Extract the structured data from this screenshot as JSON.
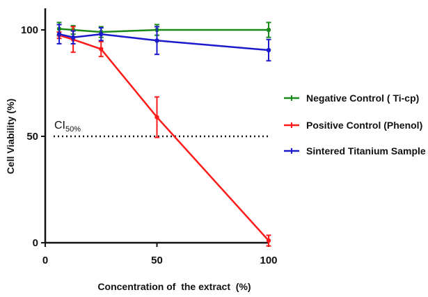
{
  "chart_data": {
    "type": "line",
    "xlabel": "Concentration of  the extract  (%)",
    "ylabel": "Cell Viability (%)",
    "xlim": [
      0,
      100
    ],
    "ylim": [
      0,
      100
    ],
    "x_ticks": [
      "0",
      "50",
      "100"
    ],
    "y_ticks": [
      "0",
      "50",
      "100"
    ],
    "grid": false,
    "legend_position": "right",
    "x": [
      6.25,
      12.5,
      25,
      50,
      100
    ],
    "series": [
      {
        "name": "Negative Control ( Ti-cp)",
        "color": "#1a8a1a",
        "values": [
          100.5,
          100,
          99,
          100,
          100
        ],
        "error": [
          3,
          2,
          2.5,
          2.5,
          3.5
        ]
      },
      {
        "name": "Positive Control (Phenol)",
        "color": "#ff1a1a",
        "values": [
          97.5,
          95.5,
          91,
          59,
          1
        ],
        "error": [
          1.5,
          6,
          3.5,
          9.5,
          2.5
        ]
      },
      {
        "name": "Sintered Titanium Sample",
        "color": "#1a1acc",
        "values": [
          98,
          96.5,
          98,
          95,
          90.5
        ],
        "error": [
          4.5,
          3,
          3,
          6.5,
          5
        ]
      }
    ],
    "annotations": [
      {
        "type": "hline",
        "y": 50,
        "style": "dotted",
        "label_main": "CI",
        "label_sub": "50%"
      }
    ]
  }
}
